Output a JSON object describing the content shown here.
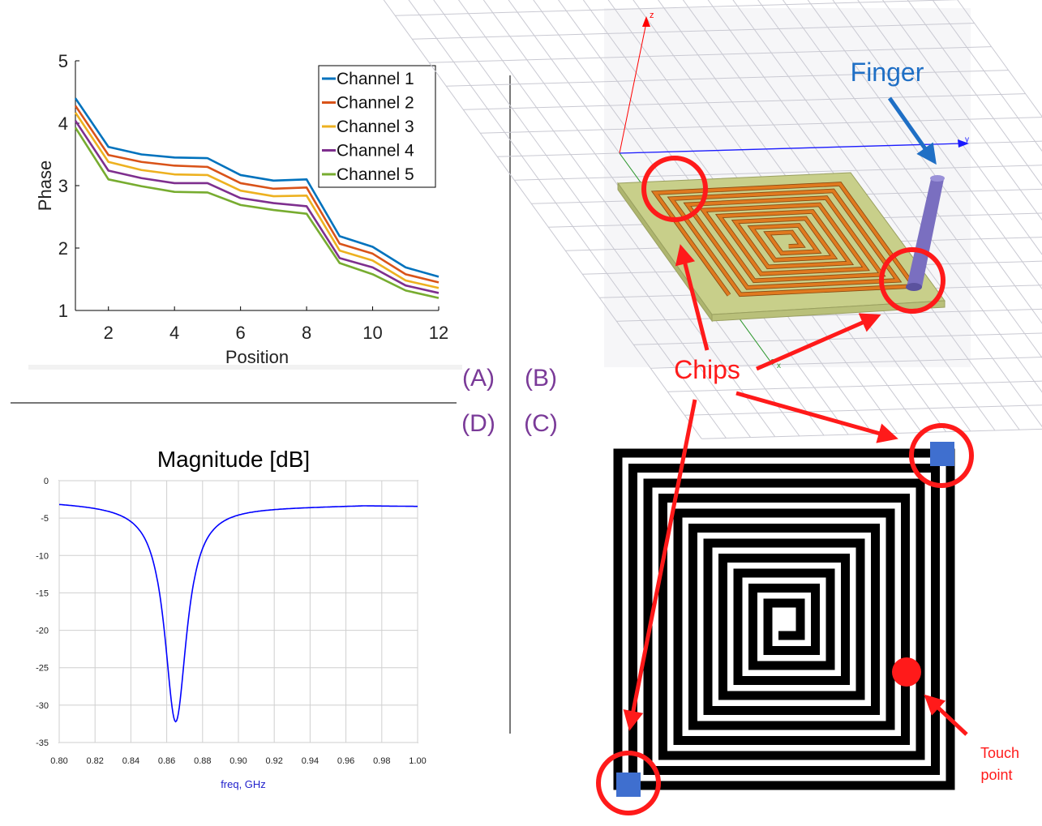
{
  "panel_labels": {
    "a": "(A)",
    "b": "(B)",
    "c": "(C)",
    "d": "(D)"
  },
  "phase_chart": {
    "ylabel": "Phase",
    "xlabel": "Position",
    "y_ticks": [
      "1",
      "2",
      "3",
      "4",
      "5"
    ],
    "x_ticks": [
      "2",
      "4",
      "6",
      "8",
      "10",
      "12"
    ],
    "colors": [
      "#0072BD",
      "#D95319",
      "#EDB120",
      "#7E2F8E",
      "#77AC30"
    ]
  },
  "magnitude_chart": {
    "title": "Magnitude [dB]",
    "xlabel": "freq, GHz",
    "y_ticks": [
      "0",
      "-5",
      "-10",
      "-15",
      "-20",
      "-25",
      "-30",
      "-35"
    ],
    "x_ticks": [
      "0.80",
      "0.82",
      "0.84",
      "0.86",
      "0.88",
      "0.90",
      "0.92",
      "0.94",
      "0.96",
      "0.98",
      "1.00"
    ],
    "line_color": "#0000ff"
  },
  "chart_data": [
    {
      "type": "line",
      "title": "",
      "xlabel": "Position",
      "ylabel": "Phase",
      "xlim": [
        1,
        12
      ],
      "ylim": [
        1,
        5
      ],
      "grid": false,
      "legend": "top-right",
      "x": [
        1,
        2,
        3,
        4,
        5,
        6,
        7,
        8,
        9,
        10,
        11,
        12
      ],
      "series": [
        {
          "name": "Channel 1",
          "color": "#0072BD",
          "values": [
            4.4,
            3.62,
            3.5,
            3.45,
            3.44,
            3.17,
            3.08,
            3.1,
            2.19,
            2.02,
            1.69,
            1.54
          ]
        },
        {
          "name": "Channel 2",
          "color": "#D95319",
          "values": [
            4.28,
            3.49,
            3.38,
            3.32,
            3.3,
            3.04,
            2.95,
            2.97,
            2.07,
            1.91,
            1.58,
            1.45
          ]
        },
        {
          "name": " Channel 3",
          "color": "#EDB120",
          "values": [
            4.17,
            3.38,
            3.25,
            3.18,
            3.17,
            2.92,
            2.83,
            2.84,
            1.96,
            1.8,
            1.48,
            1.36
          ]
        },
        {
          "name": "Channel 4",
          "color": "#7E2F8E",
          "values": [
            4.04,
            3.24,
            3.12,
            3.04,
            3.04,
            2.8,
            2.72,
            2.67,
            1.84,
            1.69,
            1.4,
            1.28
          ]
        },
        {
          "name": "Channel 5",
          "color": "#77AC30",
          "values": [
            3.93,
            3.1,
            2.99,
            2.9,
            2.89,
            2.69,
            2.61,
            2.55,
            1.76,
            1.58,
            1.32,
            1.2
          ]
        }
      ]
    },
    {
      "type": "line",
      "title": "Magnitude [dB]",
      "xlabel": "freq, GHz",
      "ylabel": "",
      "xlim": [
        0.8,
        1.0
      ],
      "ylim": [
        -35,
        0
      ],
      "grid": true,
      "x": [
        0.8,
        0.82,
        0.84,
        0.85,
        0.855,
        0.86,
        0.863,
        0.865,
        0.867,
        0.87,
        0.875,
        0.88,
        0.89,
        0.9,
        0.92,
        0.94,
        0.96,
        0.98,
        1.0
      ],
      "series": [
        {
          "name": "",
          "color": "#0000ff",
          "values": [
            -2.8,
            -3.2,
            -4.8,
            -7.5,
            -10.5,
            -16.5,
            -24.0,
            -32.0,
            -24.5,
            -15.0,
            -9.8,
            -7.3,
            -5.3,
            -4.5,
            -3.8,
            -3.5,
            -3.3,
            -3.35,
            -3.6
          ]
        }
      ]
    }
  ],
  "simulation": {
    "finger_label": "Finger",
    "chips_label": "Chips",
    "axis_z": "z",
    "axis_y": "y",
    "axis_x": "x",
    "label_color": "#1f6fc5",
    "annotation_color": "#ff1a1a",
    "trace_color": "#e07a1f",
    "substrate_color": "#c8cf8a"
  },
  "spiral": {
    "touch_label_line1": "Touch",
    "touch_label_line2": "point",
    "chip_color": "#3f6fcf",
    "touch_color": "#ff1a1a"
  }
}
